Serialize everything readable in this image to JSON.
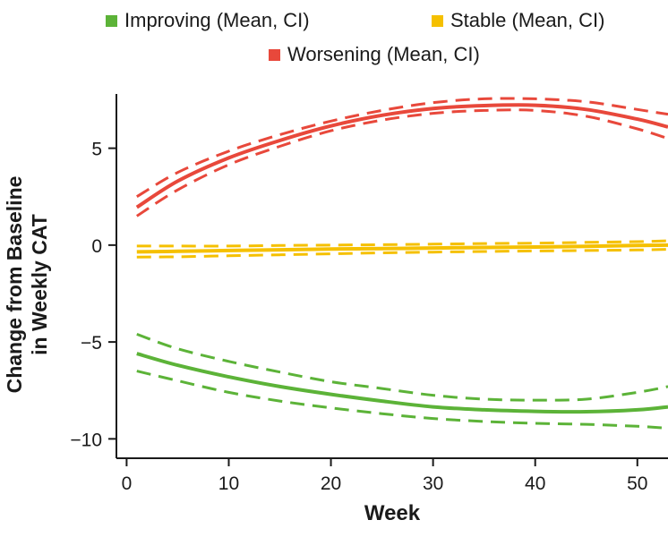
{
  "chart_data": {
    "type": "line",
    "xlabel": "Week",
    "ylabel_line1": "Change from Baseline",
    "ylabel_line2": "in Weekly CAT",
    "xlim": [
      -1,
      53
    ],
    "ylim": [
      -11,
      7.8
    ],
    "xticks": [
      0,
      10,
      20,
      30,
      40,
      50
    ],
    "yticks": [
      5,
      0,
      -5,
      -10
    ],
    "ytick_labels": [
      "5",
      "0",
      "−5",
      "−10"
    ],
    "x": [
      1,
      5,
      10,
      15,
      20,
      25,
      30,
      35,
      40,
      45,
      50,
      53
    ],
    "legend_position": "top",
    "series": [
      {
        "name": "Improving (Mean, CI)",
        "color": "#5cb338",
        "mean": [
          -5.6,
          -6.2,
          -6.8,
          -7.3,
          -7.7,
          -8.05,
          -8.35,
          -8.5,
          -8.58,
          -8.6,
          -8.5,
          -8.35
        ],
        "upper": [
          -4.6,
          -5.35,
          -6.0,
          -6.55,
          -7.05,
          -7.4,
          -7.75,
          -7.95,
          -8.0,
          -7.95,
          -7.6,
          -7.3
        ],
        "lower": [
          -6.5,
          -7.0,
          -7.6,
          -8.05,
          -8.4,
          -8.7,
          -8.95,
          -9.1,
          -9.2,
          -9.25,
          -9.35,
          -9.45
        ]
      },
      {
        "name": "Stable (Mean, CI)",
        "color": "#f5c000",
        "mean": [
          -0.35,
          -0.32,
          -0.28,
          -0.24,
          -0.2,
          -0.18,
          -0.15,
          -0.12,
          -0.1,
          -0.06,
          -0.02,
          0.0
        ],
        "upper": [
          -0.05,
          -0.05,
          -0.05,
          -0.02,
          0.0,
          0.02,
          0.05,
          0.08,
          0.1,
          0.14,
          0.18,
          0.22
        ],
        "lower": [
          -0.62,
          -0.6,
          -0.55,
          -0.5,
          -0.45,
          -0.4,
          -0.36,
          -0.33,
          -0.3,
          -0.28,
          -0.25,
          -0.22
        ]
      },
      {
        "name": "Worsening (Mean, CI)",
        "color": "#e8483b",
        "mean": [
          1.95,
          3.3,
          4.5,
          5.4,
          6.15,
          6.7,
          7.05,
          7.2,
          7.22,
          7.0,
          6.5,
          6.1
        ],
        "upper": [
          2.5,
          3.75,
          4.85,
          5.7,
          6.4,
          6.95,
          7.35,
          7.55,
          7.55,
          7.4,
          7.0,
          6.75
        ],
        "lower": [
          1.5,
          2.85,
          4.15,
          5.1,
          5.9,
          6.45,
          6.8,
          6.95,
          6.95,
          6.65,
          6.0,
          5.5
        ]
      }
    ]
  }
}
